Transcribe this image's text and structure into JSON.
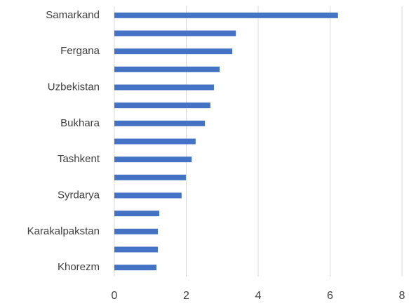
{
  "chart_data": {
    "type": "hbar",
    "categories": [
      "Samarkand",
      null,
      "Fergana",
      null,
      "Uzbekistan",
      null,
      "Bukhara",
      null,
      "Tashkent",
      null,
      "Syrdarya",
      null,
      "Karakalpakstan",
      null,
      "Khorezm"
    ],
    "values": [
      6.22,
      3.38,
      3.28,
      2.93,
      2.77,
      2.67,
      2.52,
      2.26,
      2.15,
      1.99,
      1.87,
      1.25,
      1.21,
      1.21,
      1.17
    ],
    "color": "#4472c4",
    "xlim": [
      0,
      8
    ],
    "xticks": [
      0,
      2,
      4,
      6,
      8
    ],
    "grid": true
  }
}
